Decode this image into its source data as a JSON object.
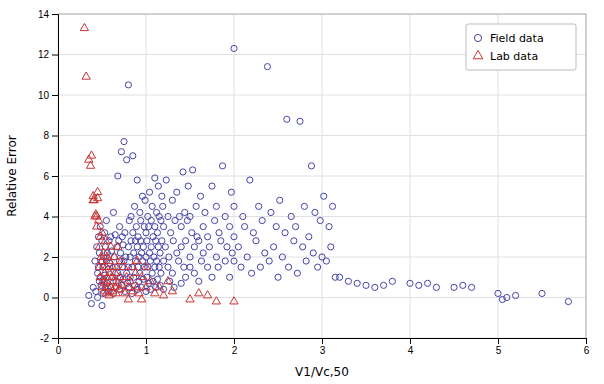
{
  "chart_data": {
    "type": "scatter",
    "xlabel": "V1/Vc,50",
    "ylabel": "Relative Error",
    "xlim": [
      0,
      6
    ],
    "ylim": [
      -2,
      14
    ],
    "xticks": [
      0,
      1,
      2,
      3,
      4,
      5,
      6
    ],
    "yticks": [
      -2,
      0,
      2,
      4,
      6,
      8,
      10,
      12,
      14
    ],
    "grid": true,
    "legend": "upper right",
    "series": [
      {
        "name": "Field data",
        "color": "#4444aa",
        "marker": "circle",
        "x": [
          0.35,
          0.38,
          0.4,
          0.42,
          0.43,
          0.44,
          0.45,
          0.45,
          0.46,
          0.46,
          0.47,
          0.47,
          0.48,
          0.48,
          0.49,
          0.5,
          0.5,
          0.5,
          0.51,
          0.51,
          0.52,
          0.52,
          0.53,
          0.53,
          0.54,
          0.54,
          0.55,
          0.55,
          0.56,
          0.56,
          0.57,
          0.58,
          0.58,
          0.59,
          0.6,
          0.6,
          0.61,
          0.62,
          0.63,
          0.63,
          0.64,
          0.65,
          0.65,
          0.66,
          0.67,
          0.68,
          0.68,
          0.69,
          0.7,
          0.7,
          0.7,
          0.71,
          0.71,
          0.72,
          0.72,
          0.73,
          0.73,
          0.74,
          0.74,
          0.75,
          0.75,
          0.76,
          0.76,
          0.77,
          0.78,
          0.78,
          0.79,
          0.8,
          0.8,
          0.8,
          0.81,
          0.81,
          0.82,
          0.82,
          0.83,
          0.83,
          0.84,
          0.84,
          0.85,
          0.85,
          0.86,
          0.86,
          0.87,
          0.87,
          0.88,
          0.88,
          0.89,
          0.9,
          0.9,
          0.9,
          0.91,
          0.91,
          0.92,
          0.92,
          0.93,
          0.93,
          0.94,
          0.94,
          0.95,
          0.95,
          0.96,
          0.96,
          0.97,
          0.97,
          0.98,
          0.98,
          0.99,
          1.0,
          1.0,
          1.0,
          1.01,
          1.01,
          1.02,
          1.02,
          1.03,
          1.03,
          1.04,
          1.04,
          1.05,
          1.05,
          1.06,
          1.06,
          1.07,
          1.07,
          1.08,
          1.08,
          1.09,
          1.1,
          1.1,
          1.1,
          1.11,
          1.11,
          1.12,
          1.12,
          1.13,
          1.13,
          1.14,
          1.14,
          1.15,
          1.15,
          1.16,
          1.16,
          1.17,
          1.17,
          1.18,
          1.18,
          1.19,
          1.2,
          1.2,
          1.2,
          1.22,
          1.23,
          1.25,
          1.25,
          1.26,
          1.27,
          1.28,
          1.3,
          1.3,
          1.31,
          1.32,
          1.33,
          1.35,
          1.35,
          1.37,
          1.38,
          1.4,
          1.4,
          1.4,
          1.42,
          1.43,
          1.44,
          1.45,
          1.45,
          1.47,
          1.48,
          1.5,
          1.5,
          1.5,
          1.52,
          1.53,
          1.55,
          1.55,
          1.57,
          1.58,
          1.6,
          1.6,
          1.62,
          1.63,
          1.65,
          1.65,
          1.67,
          1.7,
          1.7,
          1.72,
          1.75,
          1.75,
          1.78,
          1.8,
          1.8,
          1.82,
          1.83,
          1.85,
          1.87,
          1.9,
          1.9,
          1.92,
          1.95,
          1.95,
          1.97,
          1.98,
          2.0,
          2.0,
          2.0,
          2.0,
          2.05,
          2.08,
          2.1,
          2.12,
          2.15,
          2.18,
          2.2,
          2.22,
          2.25,
          2.28,
          2.3,
          2.32,
          2.35,
          2.38,
          2.4,
          2.42,
          2.45,
          2.48,
          2.5,
          2.52,
          2.55,
          2.58,
          2.6,
          2.62,
          2.65,
          2.68,
          2.7,
          2.72,
          2.75,
          2.78,
          2.8,
          2.82,
          2.85,
          2.88,
          2.9,
          2.92,
          2.95,
          2.98,
          3.0,
          3.02,
          3.05,
          3.08,
          3.1,
          3.12,
          3.15,
          3.2,
          3.3,
          3.4,
          3.5,
          3.6,
          3.7,
          3.8,
          4.0,
          4.1,
          4.2,
          4.3,
          4.5,
          4.6,
          4.7,
          5.0,
          5.05,
          5.1,
          5.2,
          5.5,
          5.8
        ],
        "values": [
          0.1,
          -0.3,
          0.5,
          1.8,
          0.3,
          2.5,
          1.2,
          0.0,
          1.5,
          3.0,
          0.8,
          2.2,
          1.0,
          3.5,
          0.6,
          -0.4,
          1.8,
          2.8,
          0.2,
          1.5,
          0.9,
          2.0,
          3.2,
          1.1,
          0.5,
          2.5,
          1.8,
          3.8,
          0.7,
          2.2,
          1.4,
          0.3,
          2.8,
          1.7,
          0.5,
          3.0,
          2.3,
          1.0,
          0.2,
          4.2,
          2.0,
          1.5,
          3.1,
          0.8,
          2.5,
          1.2,
          6.0,
          2.8,
          0.4,
          1.8,
          3.5,
          1.0,
          2.2,
          0.6,
          7.2,
          3.0,
          1.5,
          0.9,
          2.6,
          7.7,
          1.8,
          0.3,
          3.2,
          2.0,
          1.2,
          6.8,
          0.7,
          2.5,
          1.5,
          10.5,
          3.8,
          0.5,
          2.0,
          1.0,
          4.0,
          2.8,
          1.5,
          0.2,
          3.2,
          7.0,
          2.2,
          1.0,
          0.6,
          4.5,
          2.8,
          1.8,
          3.5,
          0.4,
          2.5,
          5.8,
          1.5,
          3.0,
          2.0,
          0.8,
          4.2,
          1.2,
          2.8,
          3.8,
          0.5,
          2.2,
          1.8,
          5.0,
          2.5,
          0.9,
          3.5,
          1.5,
          4.8,
          2.0,
          0.3,
          3.2,
          1.0,
          2.8,
          4.0,
          1.5,
          0.7,
          3.5,
          2.2,
          5.2,
          1.8,
          0.4,
          3.8,
          2.5,
          1.2,
          4.5,
          0.8,
          3.0,
          2.0,
          1.5,
          5.9,
          3.5,
          0.5,
          2.8,
          4.2,
          1.8,
          3.2,
          0.9,
          2.5,
          5.5,
          1.5,
          4.0,
          2.2,
          0.6,
          3.8,
          1.2,
          5.0,
          2.8,
          4.5,
          1.8,
          0.4,
          3.5,
          2.5,
          5.8,
          1.5,
          4.0,
          2.0,
          0.8,
          3.2,
          4.8,
          1.2,
          2.8,
          0.5,
          3.8,
          2.2,
          5.2,
          1.8,
          4.0,
          0.7,
          3.5,
          2.5,
          6.2,
          1.5,
          4.2,
          2.8,
          1.0,
          3.8,
          5.5,
          2.0,
          4.0,
          1.5,
          3.2,
          6.3,
          2.5,
          1.2,
          4.5,
          3.0,
          0.8,
          2.8,
          5.0,
          1.8,
          3.5,
          2.2,
          4.2,
          1.5,
          3.0,
          2.5,
          5.5,
          1.0,
          3.8,
          2.0,
          4.5,
          1.5,
          3.2,
          2.8,
          6.5,
          1.8,
          4.0,
          2.5,
          3.5,
          1.0,
          5.2,
          2.2,
          4.5,
          1.8,
          3.0,
          12.3,
          2.5,
          1.5,
          4.0,
          3.5,
          2.0,
          5.8,
          1.2,
          3.2,
          2.8,
          4.5,
          1.5,
          3.8,
          2.2,
          11.4,
          1.8,
          4.2,
          2.5,
          3.5,
          1.0,
          4.8,
          2.0,
          3.2,
          8.8,
          1.5,
          4.0,
          2.8,
          3.5,
          1.2,
          8.7,
          2.5,
          4.5,
          1.8,
          3.0,
          6.5,
          2.2,
          4.2,
          1.5,
          3.8,
          2.0,
          5.0,
          1.8,
          3.5,
          2.5,
          4.5,
          1.0,
          1.0,
          0.8,
          0.7,
          0.6,
          0.5,
          0.6,
          0.8,
          0.7,
          0.6,
          0.7,
          0.5,
          0.5,
          0.6,
          0.5,
          0.2,
          -0.1,
          0.0,
          0.1,
          0.2,
          -0.2
        ]
      },
      {
        "name": "Lab data",
        "color": "#cc3333",
        "marker": "triangle",
        "x": [
          0.3,
          0.32,
          0.35,
          0.37,
          0.38,
          0.4,
          0.4,
          0.41,
          0.42,
          0.43,
          0.44,
          0.44,
          0.45,
          0.45,
          0.46,
          0.47,
          0.47,
          0.48,
          0.48,
          0.49,
          0.5,
          0.5,
          0.5,
          0.51,
          0.52,
          0.52,
          0.53,
          0.53,
          0.54,
          0.54,
          0.55,
          0.55,
          0.56,
          0.56,
          0.57,
          0.58,
          0.58,
          0.59,
          0.6,
          0.6,
          0.61,
          0.62,
          0.62,
          0.63,
          0.64,
          0.65,
          0.65,
          0.66,
          0.67,
          0.68,
          0.68,
          0.7,
          0.7,
          0.72,
          0.73,
          0.75,
          0.76,
          0.78,
          0.8,
          0.8,
          0.82,
          0.85,
          0.85,
          0.88,
          0.9,
          0.9,
          0.92,
          0.95,
          0.95,
          1.0,
          1.0,
          1.05,
          1.1,
          1.15,
          1.2,
          1.25,
          1.3,
          1.5,
          1.6,
          1.7,
          1.8,
          2.0
        ],
        "values": [
          13.3,
          10.9,
          6.8,
          6.5,
          7.0,
          5.0,
          4.8,
          4.8,
          4.0,
          4.1,
          3.5,
          4.0,
          5.2,
          4.9,
          3.8,
          1.5,
          2.5,
          1.0,
          3.0,
          2.0,
          0.5,
          1.8,
          3.2,
          0.8,
          1.5,
          2.2,
          0.3,
          1.2,
          0.7,
          2.8,
          1.5,
          0.2,
          1.0,
          2.0,
          0.5,
          1.8,
          0.1,
          1.2,
          0.5,
          2.5,
          1.0,
          0.3,
          1.5,
          0.8,
          2.0,
          0.5,
          1.2,
          0.2,
          1.5,
          0.7,
          2.5,
          1.0,
          0.4,
          1.8,
          0.6,
          1.5,
          0.2,
          1.0,
          0.5,
          -0.1,
          0.8,
          1.5,
          0.3,
          1.2,
          0.5,
          1.8,
          0.2,
          1.0,
          -0.1,
          0.5,
          1.5,
          0.8,
          0.2,
          0.5,
          0.1,
          0.8,
          0.3,
          -0.1,
          0.2,
          0.1,
          -0.2,
          -0.2
        ]
      }
    ]
  }
}
